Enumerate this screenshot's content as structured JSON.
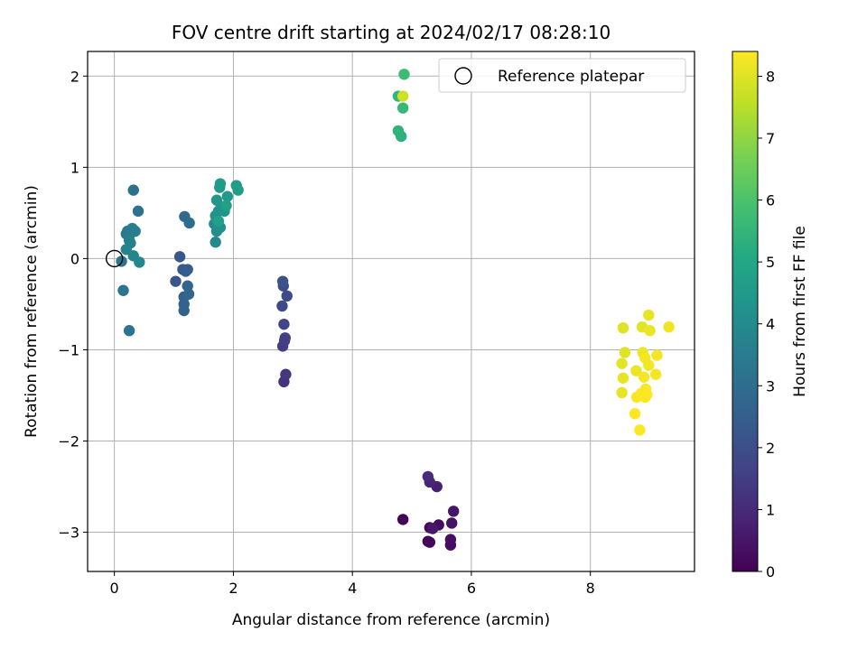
{
  "chart_data": {
    "type": "scatter",
    "title": "FOV centre drift starting at 2024/02/17 08:28:10",
    "xlabel": "Angular distance from reference (arcmin)",
    "ylabel": "Rotation from reference (arcmin)",
    "xlim": [
      -0.45,
      9.75
    ],
    "ylim": [
      -3.43,
      2.27
    ],
    "xticks": [
      "0",
      "2",
      "4",
      "6",
      "8"
    ],
    "yticks": [
      "−3",
      "−2",
      "−1",
      "0",
      "1",
      "2"
    ],
    "grid": true,
    "legend": {
      "position": "top-right",
      "entries": [
        "Reference platepar"
      ]
    },
    "colorbar": {
      "label": "Hours from first FF file",
      "range": [
        0,
        8.4
      ],
      "ticks": [
        "0",
        "1",
        "2",
        "3",
        "4",
        "5",
        "6",
        "7",
        "8"
      ],
      "colormap": "viridis"
    },
    "reference_point": {
      "x": 0,
      "y": 0
    },
    "points": [
      {
        "x": 4.85,
        "y": -2.86,
        "c": 0.05
      },
      {
        "x": 5.27,
        "y": -3.1,
        "c": 0.1
      },
      {
        "x": 5.3,
        "y": -3.11,
        "c": 0.15
      },
      {
        "x": 5.3,
        "y": -2.95,
        "c": 0.2
      },
      {
        "x": 5.45,
        "y": -2.92,
        "c": 0.25
      },
      {
        "x": 5.65,
        "y": -3.14,
        "c": 0.3
      },
      {
        "x": 5.65,
        "y": -3.08,
        "c": 0.35
      },
      {
        "x": 5.67,
        "y": -2.9,
        "c": 0.4
      },
      {
        "x": 5.7,
        "y": -2.77,
        "c": 0.5
      },
      {
        "x": 5.35,
        "y": -2.96,
        "c": 0.55
      },
      {
        "x": 5.42,
        "y": -2.5,
        "c": 0.7
      },
      {
        "x": 5.3,
        "y": -2.45,
        "c": 0.9
      },
      {
        "x": 5.27,
        "y": -2.39,
        "c": 1.0
      },
      {
        "x": 2.85,
        "y": -1.35,
        "c": 1.2
      },
      {
        "x": 2.88,
        "y": -1.27,
        "c": 1.3
      },
      {
        "x": 2.83,
        "y": -0.96,
        "c": 1.5
      },
      {
        "x": 2.87,
        "y": -0.87,
        "c": 1.6
      },
      {
        "x": 2.85,
        "y": -0.72,
        "c": 1.7
      },
      {
        "x": 2.82,
        "y": -0.52,
        "c": 1.8
      },
      {
        "x": 2.9,
        "y": -0.41,
        "c": 1.9
      },
      {
        "x": 2.84,
        "y": -0.3,
        "c": 2.0
      },
      {
        "x": 2.83,
        "y": -0.25,
        "c": 2.1
      },
      {
        "x": 2.86,
        "y": -0.9,
        "c": 1.55
      },
      {
        "x": 1.03,
        "y": -0.25,
        "c": 2.2
      },
      {
        "x": 1.1,
        "y": 0.02,
        "c": 2.3
      },
      {
        "x": 1.15,
        "y": -0.12,
        "c": 2.35
      },
      {
        "x": 1.2,
        "y": -0.14,
        "c": 2.4
      },
      {
        "x": 1.23,
        "y": -0.12,
        "c": 2.5
      },
      {
        "x": 1.17,
        "y": -0.42,
        "c": 2.55
      },
      {
        "x": 1.17,
        "y": -0.5,
        "c": 2.6
      },
      {
        "x": 1.17,
        "y": -0.57,
        "c": 2.65
      },
      {
        "x": 1.23,
        "y": -0.3,
        "c": 2.7
      },
      {
        "x": 1.25,
        "y": -0.39,
        "c": 2.75
      },
      {
        "x": 1.18,
        "y": 0.46,
        "c": 2.9
      },
      {
        "x": 1.26,
        "y": 0.39,
        "c": 3.0
      },
      {
        "x": 0.32,
        "y": 0.75,
        "c": 3.1
      },
      {
        "x": 0.4,
        "y": 0.52,
        "c": 3.15
      },
      {
        "x": 0.25,
        "y": -0.79,
        "c": 3.2
      },
      {
        "x": 0.15,
        "y": -0.35,
        "c": 3.25
      },
      {
        "x": 0.12,
        "y": -0.03,
        "c": 3.3
      },
      {
        "x": 0.2,
        "y": 0.27,
        "c": 3.35
      },
      {
        "x": 0.22,
        "y": 0.3,
        "c": 3.4
      },
      {
        "x": 0.28,
        "y": 0.28,
        "c": 3.45
      },
      {
        "x": 0.3,
        "y": 0.33,
        "c": 3.5
      },
      {
        "x": 0.35,
        "y": 0.3,
        "c": 3.55
      },
      {
        "x": 0.25,
        "y": 0.2,
        "c": 3.6
      },
      {
        "x": 0.27,
        "y": 0.17,
        "c": 3.65
      },
      {
        "x": 0.2,
        "y": 0.1,
        "c": 3.7
      },
      {
        "x": 0.32,
        "y": 0.03,
        "c": 3.8
      },
      {
        "x": 0.42,
        "y": -0.04,
        "c": 3.85
      },
      {
        "x": 1.7,
        "y": 0.18,
        "c": 3.9
      },
      {
        "x": 1.68,
        "y": 0.38,
        "c": 4.0
      },
      {
        "x": 1.72,
        "y": 0.3,
        "c": 4.1
      },
      {
        "x": 1.78,
        "y": 0.34,
        "c": 4.15
      },
      {
        "x": 1.7,
        "y": 0.47,
        "c": 4.2
      },
      {
        "x": 1.75,
        "y": 0.52,
        "c": 4.25
      },
      {
        "x": 1.8,
        "y": 0.57,
        "c": 4.3
      },
      {
        "x": 1.85,
        "y": 0.52,
        "c": 4.35
      },
      {
        "x": 1.72,
        "y": 0.64,
        "c": 4.4
      },
      {
        "x": 1.9,
        "y": 0.68,
        "c": 4.45
      },
      {
        "x": 1.77,
        "y": 0.78,
        "c": 4.5
      },
      {
        "x": 1.78,
        "y": 0.82,
        "c": 4.55
      },
      {
        "x": 2.05,
        "y": 0.8,
        "c": 4.6
      },
      {
        "x": 2.08,
        "y": 0.75,
        "c": 4.65
      },
      {
        "x": 1.88,
        "y": 0.58,
        "c": 4.7
      },
      {
        "x": 1.75,
        "y": 0.41,
        "c": 4.75
      },
      {
        "x": 4.82,
        "y": 1.34,
        "c": 5.3
      },
      {
        "x": 4.77,
        "y": 1.4,
        "c": 5.4
      },
      {
        "x": 4.77,
        "y": 1.78,
        "c": 5.5
      },
      {
        "x": 4.85,
        "y": 1.65,
        "c": 5.6
      },
      {
        "x": 4.87,
        "y": 2.02,
        "c": 5.7
      },
      {
        "x": 4.85,
        "y": 1.78,
        "c": 7.8
      },
      {
        "x": 8.55,
        "y": -0.76,
        "c": 8.0
      },
      {
        "x": 8.87,
        "y": -0.75,
        "c": 8.05
      },
      {
        "x": 8.98,
        "y": -0.62,
        "c": 8.1
      },
      {
        "x": 9.0,
        "y": -0.79,
        "c": 8.15
      },
      {
        "x": 9.32,
        "y": -0.75,
        "c": 8.2
      },
      {
        "x": 8.58,
        "y": -1.03,
        "c": 8.0
      },
      {
        "x": 8.53,
        "y": -1.15,
        "c": 8.05
      },
      {
        "x": 8.55,
        "y": -1.31,
        "c": 8.1
      },
      {
        "x": 8.53,
        "y": -1.47,
        "c": 8.1
      },
      {
        "x": 8.77,
        "y": -1.23,
        "c": 8.15
      },
      {
        "x": 8.88,
        "y": -1.03,
        "c": 8.2
      },
      {
        "x": 8.92,
        "y": -1.09,
        "c": 8.25
      },
      {
        "x": 8.98,
        "y": -1.17,
        "c": 8.25
      },
      {
        "x": 9.12,
        "y": -1.06,
        "c": 8.3
      },
      {
        "x": 9.1,
        "y": -1.27,
        "c": 8.3
      },
      {
        "x": 8.9,
        "y": -1.3,
        "c": 8.3
      },
      {
        "x": 8.93,
        "y": -1.43,
        "c": 8.35
      },
      {
        "x": 8.85,
        "y": -1.48,
        "c": 8.35
      },
      {
        "x": 8.78,
        "y": -1.52,
        "c": 8.35
      },
      {
        "x": 8.92,
        "y": -1.52,
        "c": 8.4
      },
      {
        "x": 8.75,
        "y": -1.7,
        "c": 8.4
      },
      {
        "x": 8.83,
        "y": -1.88,
        "c": 8.4
      },
      {
        "x": 8.95,
        "y": -1.49,
        "c": 8.4
      }
    ]
  }
}
